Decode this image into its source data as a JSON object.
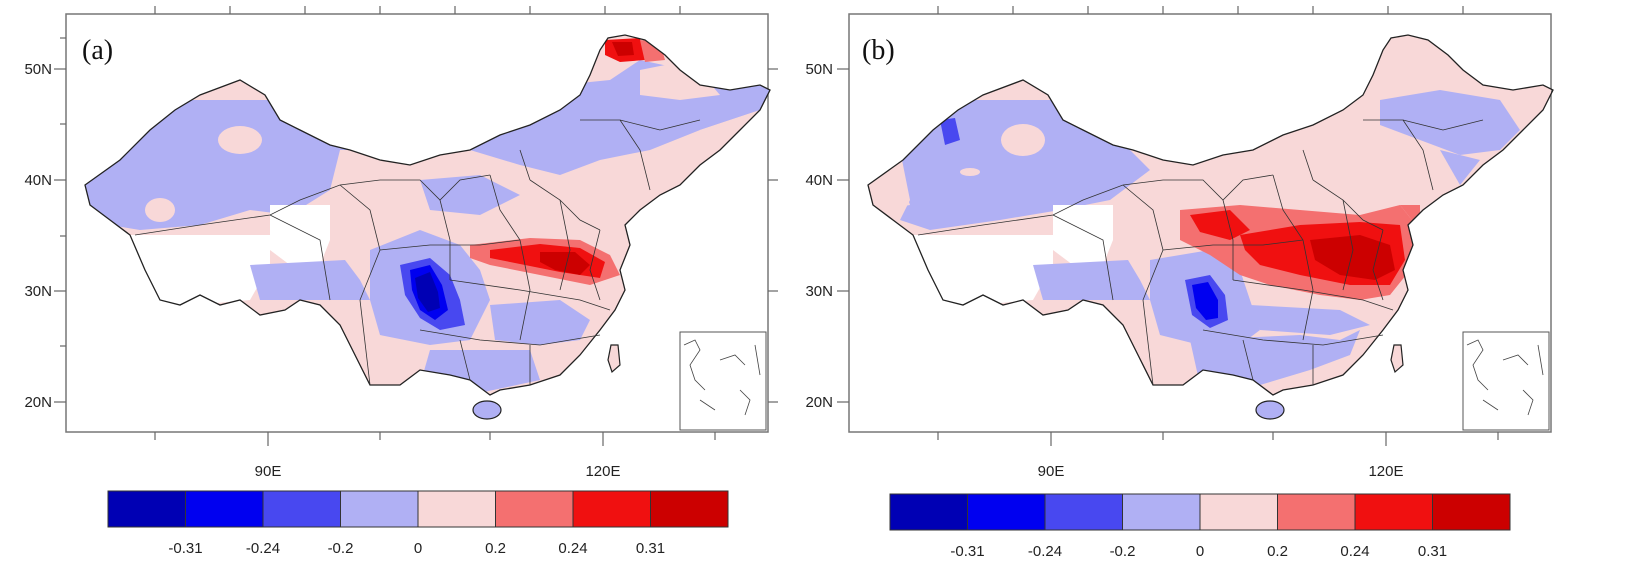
{
  "colors": {
    "c1": "#0000b4",
    "c2": "#0000f0",
    "c3": "#4848f0",
    "c4": "#b0b0f4",
    "c5": "#f8d8d8",
    "c6": "#f47070",
    "c7": "#f01010",
    "c8": "#cc0000",
    "ocean": "#ffffff"
  },
  "panels": [
    {
      "label": "(a)",
      "lat_labels": [
        "50N",
        "40N",
        "30N",
        "20N"
      ],
      "lon_labels": [
        "90E",
        "120E"
      ]
    },
    {
      "label": "(b)",
      "lat_labels": [
        "50N",
        "40N",
        "30N",
        "20N"
      ],
      "lon_labels": [
        "90E",
        "120E"
      ]
    }
  ],
  "colorbar": {
    "labels": [
      "-0.31",
      "-0.24",
      "-0.2",
      "0",
      "0.2",
      "0.24",
      "0.31"
    ],
    "levels": [
      -0.31,
      -0.24,
      -0.2,
      0,
      0.2,
      0.24,
      0.31
    ]
  }
}
